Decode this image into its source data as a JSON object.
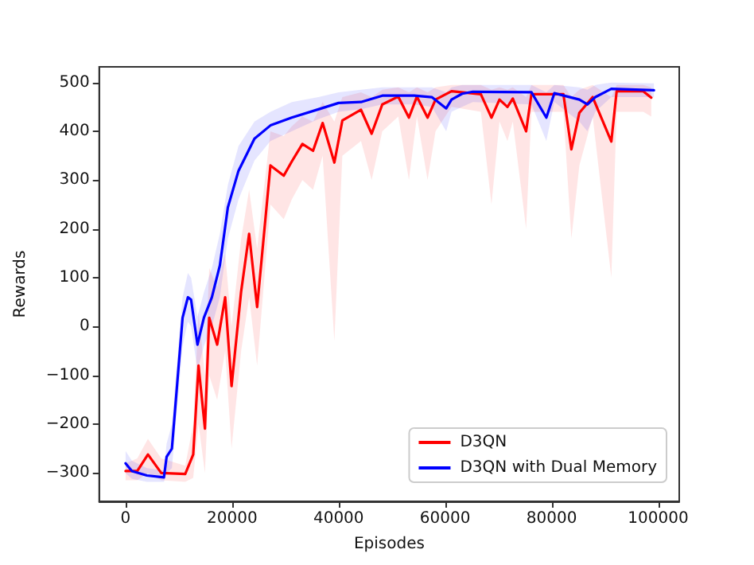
{
  "chart_data": {
    "type": "line",
    "xlabel": "Episodes",
    "ylabel": "Rewards",
    "xlim": [
      -4950,
      103950
    ],
    "ylim": [
      -358,
      532
    ],
    "xticks": [
      0,
      20000,
      40000,
      60000,
      80000,
      100000
    ],
    "yticks": [
      -300,
      -200,
      -100,
      0,
      100,
      200,
      300,
      400,
      500
    ],
    "grid": false,
    "legend": "bottom right",
    "marker": "none",
    "line_style": "solid",
    "series": [
      {
        "name": "D3QN",
        "color": "#ff0000",
        "x": [
          0,
          2200,
          4200,
          6700,
          11200,
          12700,
          13700,
          14900,
          15700,
          17200,
          18700,
          19900,
          21700,
          23200,
          24700,
          27200,
          29700,
          31200,
          33200,
          35200,
          37000,
          39200,
          40700,
          44200,
          46200,
          48200,
          51200,
          53200,
          54700,
          56700,
          58200,
          61200,
          66700,
          68700,
          70200,
          71700,
          72700,
          75200,
          76200,
          82200,
          83700,
          85200,
          87700,
          91200,
          92200,
          97200,
          98700
        ],
        "values": [
          -296,
          -296,
          -262,
          -300,
          -302,
          -262,
          -80,
          -209,
          18,
          -37,
          60,
          -122,
          72,
          190,
          40,
          330,
          309,
          338,
          374,
          360,
          417,
          336,
          422,
          444,
          395,
          455,
          471,
          428,
          471,
          428,
          465,
          482,
          476,
          428,
          465,
          450,
          467,
          400,
          476,
          476,
          363,
          438,
          470,
          379,
          482,
          482,
          469
        ],
        "lower": [
          -315,
          -315,
          -300,
          -315,
          -318,
          -310,
          -200,
          -300,
          -100,
          -150,
          -50,
          -250,
          -50,
          60,
          -80,
          250,
          220,
          260,
          300,
          280,
          350,
          -30,
          350,
          380,
          300,
          400,
          430,
          300,
          430,
          300,
          400,
          450,
          440,
          250,
          420,
          380,
          420,
          200,
          440,
          440,
          180,
          330,
          430,
          100,
          440,
          440,
          430
        ],
        "upper": [
          -280,
          -270,
          -230,
          -270,
          -285,
          -200,
          30,
          -100,
          120,
          80,
          150,
          0,
          180,
          280,
          160,
          400,
          390,
          410,
          430,
          420,
          460,
          420,
          470,
          480,
          470,
          485,
          490,
          480,
          490,
          480,
          490,
          495,
          495,
          485,
          490,
          485,
          490,
          470,
          495,
          495,
          470,
          485,
          495,
          470,
          495,
          495,
          490
        ]
      },
      {
        "name": "D3QN with Dual Memory",
        "color": "#0000ff",
        "x": [
          0,
          1200,
          4000,
          7200,
          7700,
          8700,
          10700,
          11700,
          12300,
          13500,
          14700,
          16200,
          17700,
          19200,
          21200,
          24200,
          27200,
          31200,
          36200,
          40000,
          44200,
          48200,
          54200,
          57500,
          60200,
          61200,
          63200,
          65200,
          76200,
          79000,
          80500,
          85200,
          86700,
          88200,
          91200,
          99200
        ],
        "values": [
          -280,
          -296,
          -305,
          -309,
          -267,
          -250,
          18,
          60,
          55,
          -37,
          18,
          60,
          125,
          244,
          319,
          385,
          412,
          428,
          445,
          458,
          460,
          473,
          473,
          470,
          447,
          465,
          477,
          481,
          480,
          428,
          478,
          465,
          455,
          470,
          487,
          484
        ],
        "lower": [
          -300,
          -312,
          -318,
          -318,
          -300,
          -290,
          -40,
          10,
          0,
          -90,
          -40,
          0,
          60,
          180,
          260,
          340,
          380,
          400,
          425,
          440,
          445,
          455,
          455,
          450,
          400,
          440,
          450,
          460,
          455,
          380,
          460,
          420,
          400,
          440,
          470,
          470
        ],
        "upper": [
          -255,
          -275,
          -290,
          -295,
          -240,
          -200,
          60,
          110,
          100,
          20,
          70,
          120,
          190,
          290,
          370,
          420,
          440,
          460,
          470,
          480,
          485,
          490,
          490,
          490,
          480,
          490,
          495,
          495,
          495,
          480,
          495,
          490,
          485,
          495,
          500,
          498
        ]
      }
    ]
  }
}
